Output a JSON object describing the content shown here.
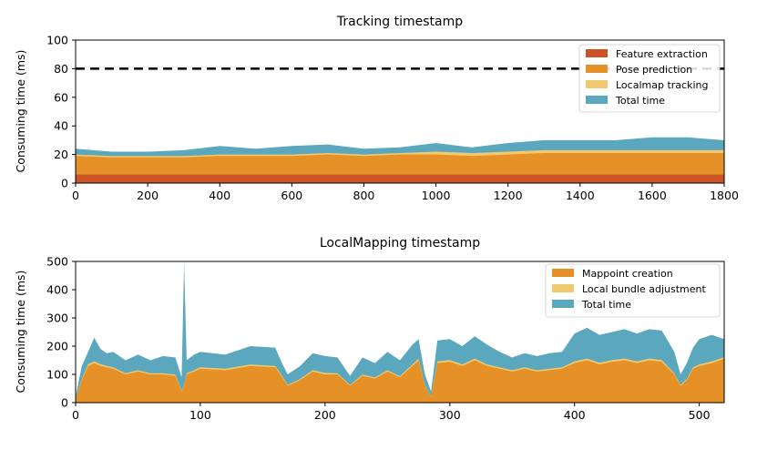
{
  "chart_data": [
    {
      "type": "area",
      "title": "Tracking timestamp",
      "xlabel": "",
      "ylabel": "Consuming time (ms)",
      "xlim": [
        0,
        1800
      ],
      "ylim": [
        0,
        100
      ],
      "xticks": [
        "0",
        "200",
        "400",
        "600",
        "800",
        "1000",
        "1200",
        "1400",
        "1600",
        "1800"
      ],
      "yticks": [
        "0",
        "20",
        "40",
        "60",
        "80",
        "100"
      ],
      "legend_position": "top-right",
      "reference_line": {
        "value": 80,
        "style": "dashed",
        "color": "#000000"
      },
      "x": [
        0,
        100,
        200,
        300,
        400,
        500,
        600,
        700,
        800,
        900,
        1000,
        1100,
        1200,
        1300,
        1400,
        1500,
        1600,
        1700,
        1800
      ],
      "series": [
        {
          "name": "Feature extraction",
          "color": "#cc5228",
          "values": [
            6,
            6,
            6,
            6,
            6,
            6,
            6,
            6,
            6,
            6,
            6,
            6,
            6,
            6,
            6,
            6,
            6,
            6,
            6
          ]
        },
        {
          "name": "Pose prediction",
          "color": "#e69128",
          "values": [
            13,
            12,
            12,
            12,
            13,
            13,
            13,
            14,
            13,
            14,
            14,
            13,
            14,
            15,
            15,
            15,
            15,
            15,
            15
          ]
        },
        {
          "name": "Localmap tracking",
          "color": "#f2c96e",
          "values": [
            1,
            1,
            1,
            1,
            1,
            1,
            1,
            1,
            1,
            1,
            2,
            2,
            2,
            2,
            2,
            2,
            2,
            2,
            2
          ]
        },
        {
          "name": "Total time",
          "color": "#5ba8be",
          "values": [
            24,
            22,
            22,
            23,
            26,
            24,
            26,
            27,
            24,
            25,
            28,
            25,
            28,
            30,
            30,
            30,
            32,
            32,
            30
          ]
        }
      ]
    },
    {
      "type": "area",
      "title": "LocalMapping timestamp",
      "xlabel": "",
      "ylabel": "Consuming time (ms)",
      "xlim": [
        0,
        520
      ],
      "ylim": [
        0,
        500
      ],
      "xticks": [
        "0",
        "100",
        "200",
        "300",
        "400",
        "500"
      ],
      "yticks": [
        "0",
        "100",
        "200",
        "300",
        "400",
        "500"
      ],
      "legend_position": "top-right",
      "x": [
        0,
        5,
        10,
        15,
        20,
        25,
        30,
        40,
        50,
        60,
        70,
        80,
        85,
        87,
        89,
        95,
        100,
        120,
        140,
        160,
        165,
        170,
        180,
        190,
        200,
        210,
        220,
        230,
        240,
        250,
        260,
        270,
        275,
        280,
        285,
        290,
        300,
        310,
        320,
        330,
        340,
        350,
        360,
        370,
        380,
        390,
        400,
        410,
        420,
        430,
        440,
        450,
        460,
        470,
        480,
        485,
        490,
        495,
        500,
        510,
        520
      ],
      "series": [
        {
          "name": "Mappoint creation",
          "color": "#e69128",
          "values": [
            10,
            80,
            130,
            140,
            130,
            125,
            120,
            100,
            110,
            100,
            100,
            95,
            40,
            60,
            100,
            110,
            120,
            115,
            130,
            125,
            95,
            60,
            80,
            110,
            100,
            100,
            60,
            95,
            85,
            110,
            90,
            130,
            150,
            60,
            20,
            140,
            145,
            130,
            150,
            130,
            120,
            110,
            120,
            110,
            115,
            120,
            140,
            150,
            135,
            145,
            150,
            140,
            150,
            145,
            100,
            60,
            80,
            120,
            130,
            140,
            155
          ]
        },
        {
          "name": "Local bundle adjustment",
          "color": "#f2c96e",
          "values": [
            2,
            4,
            6,
            6,
            6,
            5,
            5,
            4,
            5,
            4,
            4,
            4,
            3,
            3,
            4,
            5,
            5,
            5,
            5,
            5,
            4,
            3,
            4,
            5,
            5,
            4,
            3,
            4,
            4,
            5,
            4,
            5,
            6,
            3,
            2,
            6,
            6,
            5,
            6,
            5,
            5,
            5,
            5,
            5,
            5,
            5,
            6,
            6,
            6,
            6,
            6,
            6,
            6,
            6,
            4,
            3,
            4,
            5,
            5,
            6,
            6
          ]
        },
        {
          "name": "Total time",
          "color": "#5ba8be",
          "values": [
            20,
            130,
            180,
            230,
            190,
            175,
            180,
            150,
            170,
            150,
            165,
            160,
            90,
            495,
            150,
            170,
            180,
            170,
            200,
            195,
            145,
            100,
            130,
            175,
            165,
            160,
            95,
            160,
            140,
            180,
            150,
            205,
            225,
            100,
            40,
            220,
            225,
            200,
            235,
            205,
            180,
            160,
            175,
            165,
            175,
            180,
            245,
            265,
            240,
            250,
            260,
            245,
            260,
            255,
            180,
            100,
            140,
            195,
            225,
            240,
            225
          ]
        }
      ]
    }
  ]
}
